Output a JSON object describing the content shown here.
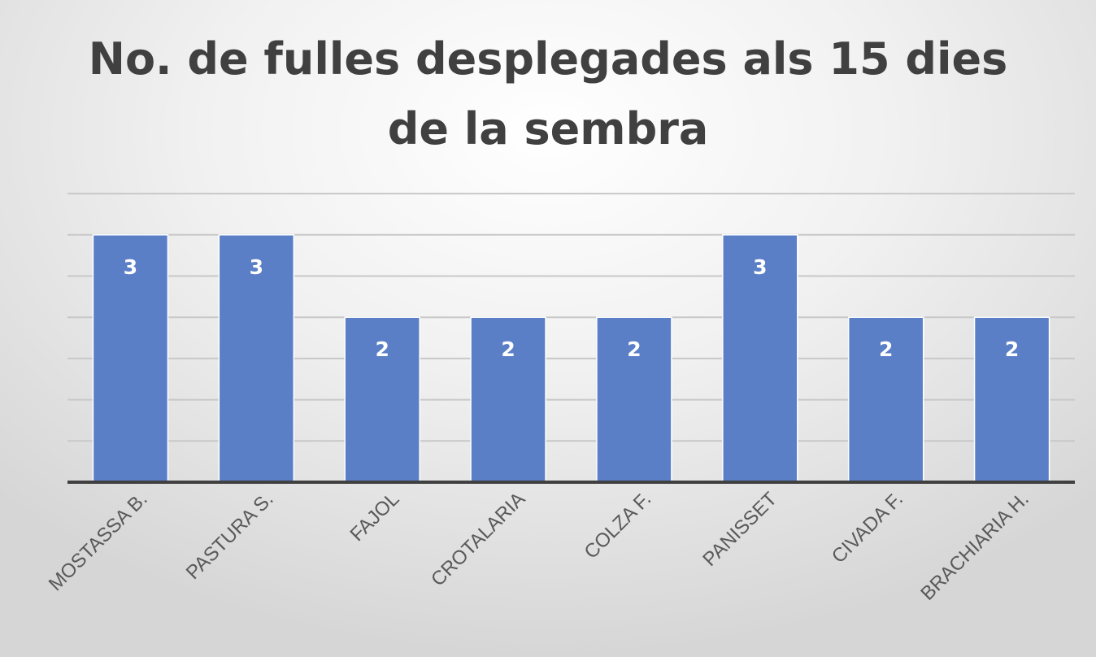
{
  "chart_data": {
    "type": "bar",
    "title": "No. de fulles desplegades als 15 dies de la sembra",
    "categories": [
      "MOSTASSA B.",
      "PASTURA S.",
      "FAJOL",
      "CROTALARIA",
      "COLZA F.",
      "PANISSET",
      "CIVADA F.",
      "BRACHIARIA H."
    ],
    "values": [
      3,
      3,
      2,
      2,
      2,
      3,
      2,
      2
    ],
    "data_labels": [
      "3",
      "3",
      "2",
      "2",
      "2",
      "3",
      "2",
      "2"
    ],
    "ylim": [
      0,
      3.5
    ],
    "gridline_step": 0.5,
    "y_axis_labels_shown": false,
    "grid": true,
    "legend": "none",
    "bar_color": "#5b7fc7",
    "gridline_color": "#c8c8c8",
    "axis_color": "#404040"
  }
}
